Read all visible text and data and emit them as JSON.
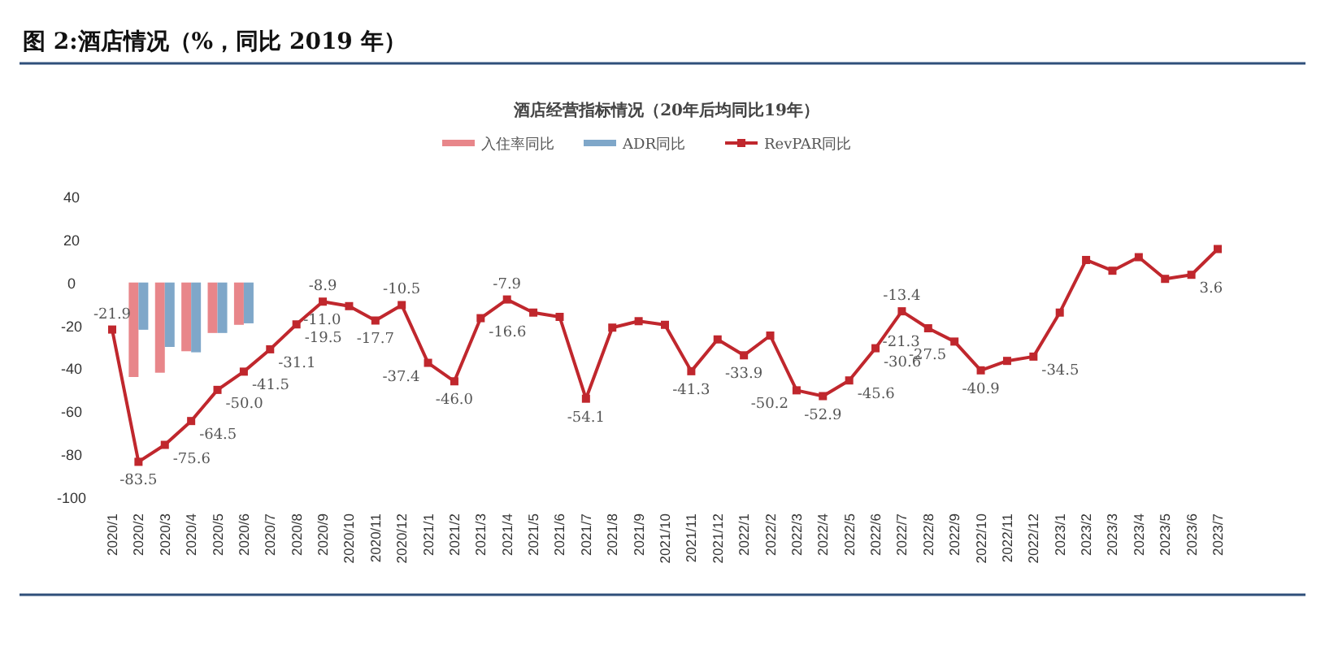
{
  "chart_data": {
    "type": "bar",
    "title": "图 2:酒店情况（%，同比 2019 年）",
    "subtitle": "酒店经营指标情况（20年后均同比19年）",
    "categories": [
      "2020/1",
      "2020/2",
      "2020/3",
      "2020/4",
      "2020/5",
      "2020/6",
      "2020/7",
      "2020/8",
      "2020/9",
      "2020/10",
      "2020/11",
      "2020/12",
      "2021/1",
      "2021/2",
      "2021/3",
      "2021/4",
      "2021/5",
      "2021/6",
      "2021/7",
      "2021/8",
      "2021/9",
      "2021/10",
      "2021/11",
      "2021/12",
      "2022/1",
      "2022/2",
      "2022/3",
      "2022/4",
      "2022/5",
      "2022/6",
      "2022/7",
      "2022/8",
      "2022/9",
      "2022/10",
      "2022/11",
      "2022/12",
      "2023/1",
      "2023/2",
      "2023/3",
      "2023/4",
      "2023/5",
      "2023/6",
      "2023/7"
    ],
    "series": [
      {
        "name": "入住率同比",
        "color": "#e8868a",
        "values": [
          null,
          -44,
          -42,
          -32,
          -23.5,
          -19.7,
          null,
          null,
          null,
          null,
          null,
          null,
          null,
          null,
          null,
          null,
          null,
          null,
          null,
          null,
          null,
          null,
          null,
          null,
          null,
          null,
          null,
          null,
          null,
          null,
          null,
          null,
          null,
          null,
          null,
          null,
          null,
          null,
          null,
          null,
          null,
          null,
          null
        ]
      },
      {
        "name": "ADR同比",
        "color": "#7fa7c9",
        "values": [
          null,
          -22,
          -30,
          -32.5,
          -23.5,
          -19,
          null,
          null,
          null,
          null,
          null,
          null,
          null,
          null,
          null,
          null,
          null,
          null,
          null,
          null,
          null,
          null,
          null,
          null,
          null,
          null,
          null,
          null,
          null,
          null,
          null,
          null,
          null,
          null,
          null,
          null,
          null,
          null,
          null,
          null,
          null,
          null,
          null
        ]
      },
      {
        "name": "RevPAR同比",
        "type": "line",
        "color": "#c0272d",
        "marker": "square",
        "values": [
          -21.9,
          -83.5,
          -75.6,
          -64.5,
          -50.0,
          -41.5,
          -31.1,
          -19.5,
          -8.9,
          -11.0,
          -17.7,
          -10.5,
          -37.4,
          -46.0,
          -16.6,
          -7.9,
          -14,
          -16,
          -54.1,
          -21,
          -18,
          -19.7,
          -41.3,
          -26.5,
          -33.9,
          -24.7,
          -50.2,
          -52.9,
          -45.6,
          -30.6,
          -13.4,
          -21.3,
          -27.5,
          -40.9,
          -36.5,
          -34.5,
          -14,
          10.5,
          5.5,
          11.8,
          1.7,
          3.6,
          15.6
        ],
        "value_labels": [
          "-21.9",
          "-83.5",
          "-75.6",
          "-64.5",
          "-50.0",
          "-41.5",
          "-31.1",
          "-19.5",
          "-8.9",
          "-11.0",
          "-17.7",
          "-10.5",
          "-37.4",
          "-46.0",
          "-16.6",
          "-7.9",
          null,
          null,
          "-54.1",
          null,
          null,
          null,
          "-41.3",
          null,
          "-33.9",
          null,
          "-50.2",
          "-52.9",
          "-45.6",
          "-30.6",
          "-13.4",
          "-21.3",
          "-27.5",
          "-40.9",
          null,
          "-34.5",
          null,
          null,
          null,
          null,
          null,
          "3.6",
          null
        ]
      }
    ],
    "ylim": [
      -100,
      40
    ],
    "yticks": [
      -100,
      -80,
      -60,
      -40,
      -20,
      0,
      20,
      40
    ],
    "legend": "top",
    "grid": false
  }
}
